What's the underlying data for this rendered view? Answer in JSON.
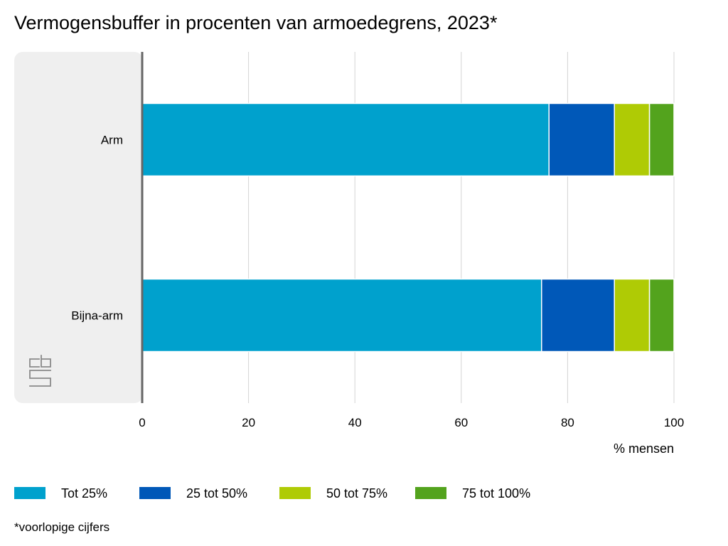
{
  "chart_data": {
    "type": "bar",
    "orientation": "horizontal",
    "stacked": true,
    "title": "Vermogensbuffer in procenten van armoedegrens, 2023*",
    "categories": [
      "Arm",
      "Bijna-arm"
    ],
    "series": [
      {
        "name": "Tot 25%",
        "color": "#00a1cd",
        "values": [
          76.5,
          75.1
        ]
      },
      {
        "name": "25 tot 50%",
        "color": "#0058b8",
        "values": [
          12.3,
          13.7
        ]
      },
      {
        "name": "50 tot 75%",
        "color": "#afcb05",
        "values": [
          6.6,
          6.6
        ]
      },
      {
        "name": "75 tot 100%",
        "color": "#53a31d",
        "values": [
          4.6,
          4.6
        ]
      }
    ],
    "xlabel": "% mensen",
    "ylabel": "",
    "xlim": [
      0,
      100
    ],
    "xticks": [
      0,
      20,
      40,
      60,
      80,
      100
    ],
    "xtick_labels": [
      "0",
      "20",
      "40",
      "60",
      "80",
      "100"
    ],
    "grid": true,
    "legend_position": "bottom-left",
    "footnote": "*voorlopige cijfers"
  },
  "logo_text": "cbs"
}
